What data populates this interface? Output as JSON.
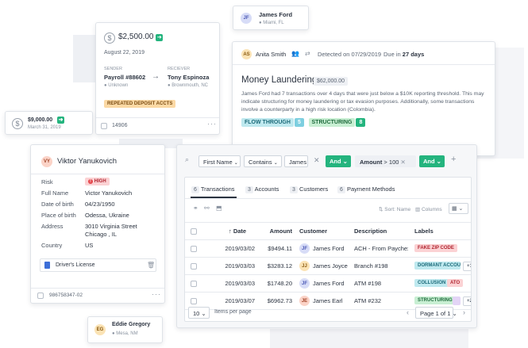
{
  "colors": {
    "green": "#24b47e",
    "red_pill": "#fbd2d4",
    "orange_pill": "#fbd9a5",
    "teal_pill": "#bfe9ef",
    "green_pill": "#c8efd3",
    "purple_pill": "#e3d4f6"
  },
  "top_contact": {
    "avatar": "JF",
    "name": "James Ford",
    "location": "Miami, FL"
  },
  "payment_card": {
    "amount": "$2,500.00",
    "date": "August 22, 2019",
    "sender_label": "SENDER",
    "sender_name": "Payroll #88602",
    "sender_location": "Unknown",
    "receiver_label": "RECIEVER",
    "receiver_name": "Tony Espinoza",
    "receiver_location": "Brownmouth, NC",
    "tag": "REPEATED DEPOSIT ACCTS",
    "id": "14906"
  },
  "small_payment": {
    "amount": "$9,000.00",
    "date": "March 31, 2019"
  },
  "alert_card": {
    "avatar": "AS",
    "assignee": "Anita Smith",
    "detected_label": "Detected on",
    "detected_date": "07/29/2019",
    "due_label": "Due in",
    "due_value": "27 days",
    "title": "Money Laundering",
    "amount": "$62,000.00",
    "description": "James Ford had 7 transactions over 4 days that were just below a $10K reporting threshold. This may indicate structuring for money laundering or tax evasion purposes. Additionally, some transactions involve a counterparty in a high risk location (Colombia).",
    "tags": [
      {
        "label": "FLOW THROUGH",
        "count": "5"
      },
      {
        "label": "STRUCTURING",
        "count": "8"
      }
    ]
  },
  "person_card": {
    "avatar": "VY",
    "name": "Viktor Yanukovich",
    "fields": [
      {
        "label": "Risk",
        "value": "HIGH"
      },
      {
        "label": "Full Name",
        "value": "Victor Yanukovich"
      },
      {
        "label": "Date of birth",
        "value": "04/23/1950"
      },
      {
        "label": "Place of birth",
        "value": "Odessa, Ukraine"
      },
      {
        "label": "Address",
        "value": "3010 Virginia Street",
        "value2": "Chicago , IL"
      },
      {
        "label": "Country",
        "value": "US"
      }
    ],
    "document": "Driver's License",
    "id": "986758347-02"
  },
  "bottom_contact": {
    "avatar": "EG",
    "name": "Eddie Gregory",
    "location": "Mesa, NM"
  },
  "filter_bar": {
    "field": "First Name",
    "operator": "Contains",
    "value": "James",
    "and1": "And",
    "field2": "Amount",
    "op2": ">",
    "value2": "100",
    "and2": "And",
    "add": "+"
  },
  "tabs": [
    {
      "count": "6",
      "label": "Transactions"
    },
    {
      "count": "3",
      "label": "Accounts"
    },
    {
      "count": "3",
      "label": "Customers"
    },
    {
      "count": "6",
      "label": "Payment Methods"
    }
  ],
  "toolbar": {
    "sort": "Sort: Name",
    "columns": "Columns"
  },
  "table": {
    "headers": {
      "date": "Date",
      "amount": "Amount",
      "customer": "Customer",
      "description": "Description",
      "labels": "Labels"
    },
    "rows": [
      {
        "date": "2019/03/02",
        "amount": "$9494.11",
        "avatar": "JF",
        "customer": "James Ford",
        "description": "ACH - From Paychex",
        "labels": [
          {
            "text": "FAKE ZIP CODE",
            "style": "red"
          }
        ],
        "more": ""
      },
      {
        "date": "2019/03/03",
        "amount": "$3283.12",
        "avatar": "JJ",
        "customer": "James Joyce",
        "description": "Branch #198",
        "labels": [
          {
            "text": "DORMANT ACCOUNT",
            "style": "teal"
          }
        ],
        "more": "+1"
      },
      {
        "date": "2019/03/03",
        "amount": "$1748.20",
        "avatar": "JF",
        "customer": "James Ford",
        "description": "ATM #198",
        "labels": [
          {
            "text": "COLLUSION",
            "style": "teal"
          },
          {
            "text": "ATO",
            "style": "red"
          }
        ],
        "more": ""
      },
      {
        "date": "2019/03/07",
        "amount": "$6962.73",
        "avatar": "JE",
        "customer": "James Earl",
        "description": "ATM #232",
        "labels": [
          {
            "text": "STRUCTURING",
            "style": "green"
          },
          {
            "text": "",
            "style": "purple"
          }
        ],
        "more": "+2"
      }
    ]
  },
  "pagination": {
    "per_page": "10",
    "per_page_label": "Items per page",
    "page": "Page 1 of 1"
  }
}
